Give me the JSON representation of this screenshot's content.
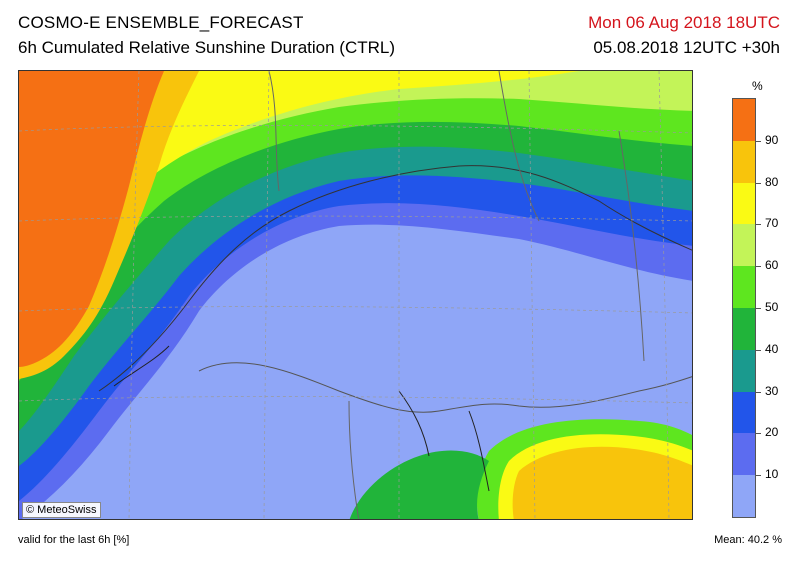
{
  "header": {
    "title": "COSMO-E ENSEMBLE_FORECAST",
    "subtitle": "6h Cumulated Relative Sunshine Duration (CTRL)",
    "valid_time": "Mon 06 Aug 2018 18UTC",
    "run_info": "05.08.2018 12UTC +30h",
    "valid_time_color": "#d4141c"
  },
  "map": {
    "credit": "© MeteoSwiss"
  },
  "legend": {
    "unit": "%",
    "ticks": [
      "10",
      "20",
      "30",
      "40",
      "50",
      "60",
      "70",
      "80",
      "90"
    ],
    "colors": [
      "#8fa6f7",
      "#5c6cf0",
      "#2255ea",
      "#1a9a8e",
      "#21b43a",
      "#5ee61f",
      "#c3f458",
      "#fafa14",
      "#f8c40c",
      "#f57014"
    ]
  },
  "footer": {
    "left": "valid for the last 6h [%]",
    "right": "Mean:  40.2 %"
  }
}
